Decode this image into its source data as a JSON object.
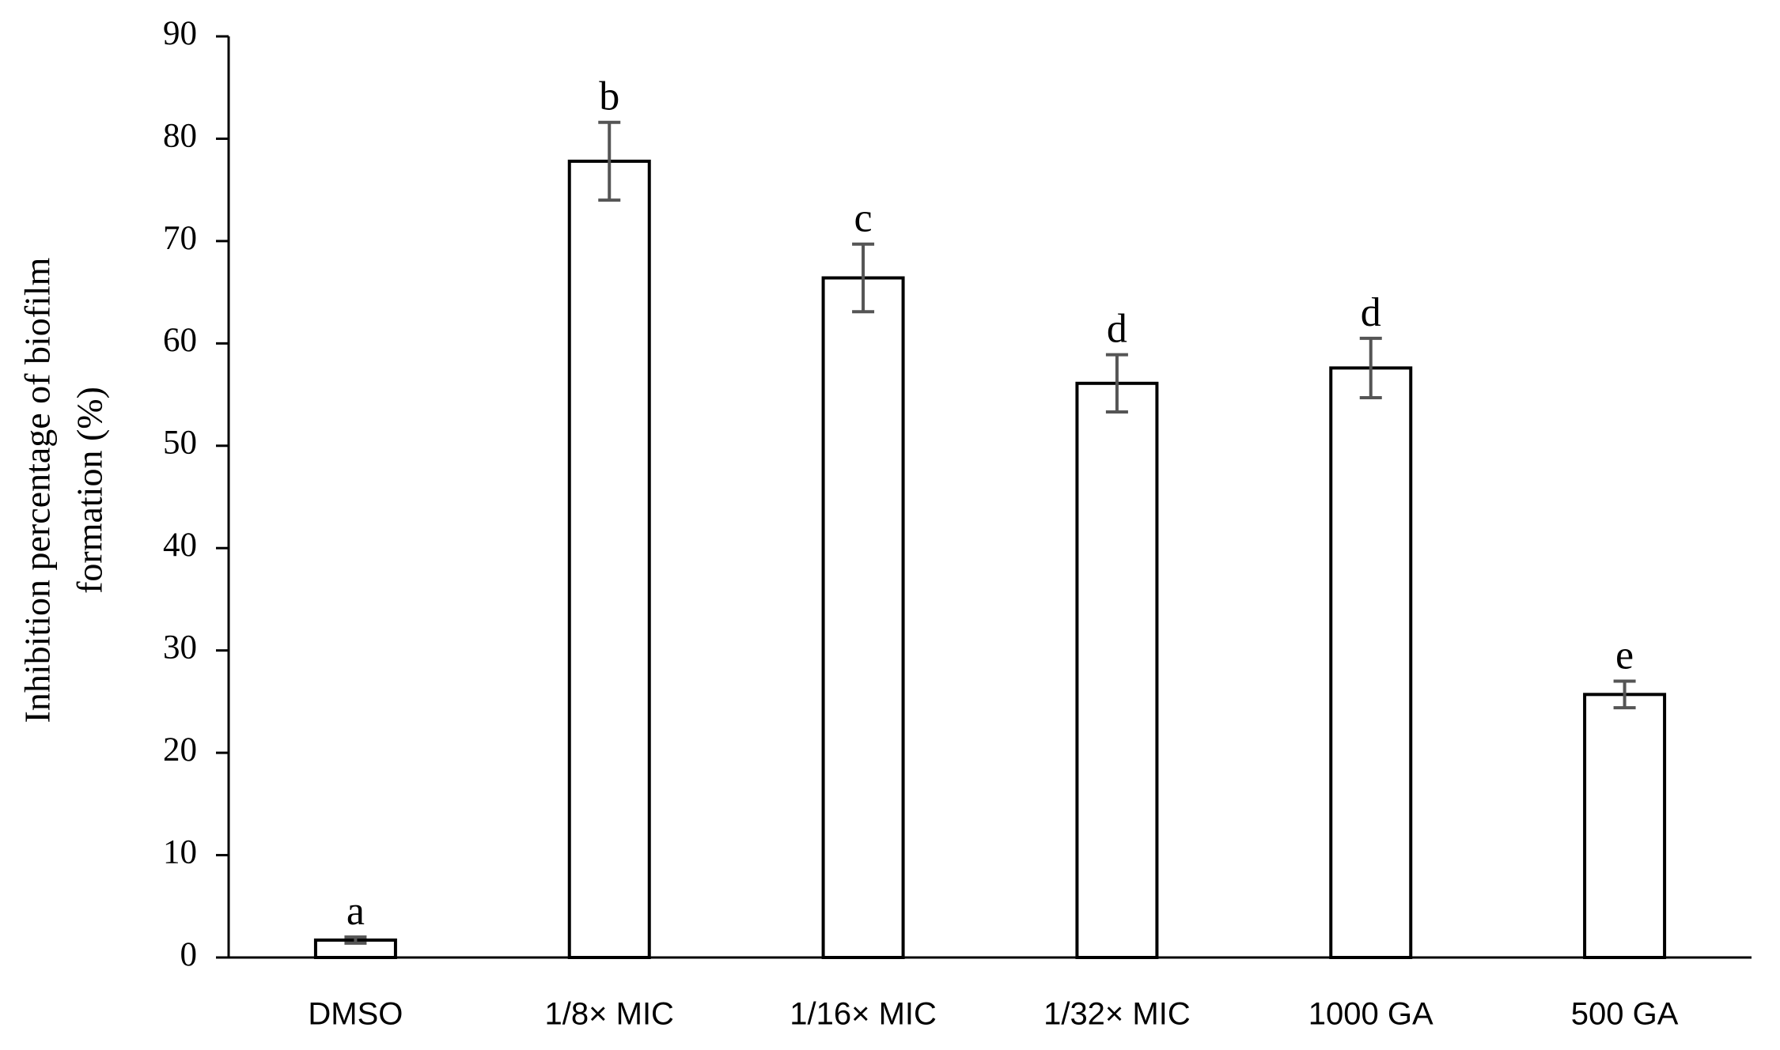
{
  "chart_data": {
    "type": "bar",
    "ylabel": [
      "Inhibition percentage of biofilm",
      "formation (%)"
    ],
    "categories": [
      "DMSO",
      "1/8× MIC",
      "1/16× MIC",
      "1/32× MIC",
      "1000 GA",
      "500 GA"
    ],
    "values": [
      1.7,
      77.8,
      66.4,
      56.1,
      57.6,
      25.7
    ],
    "errors": [
      0.3,
      3.8,
      3.3,
      2.8,
      2.9,
      1.3
    ],
    "annotations": [
      "a",
      "b",
      "c",
      "d",
      "d",
      "e"
    ],
    "color": "#ffffff",
    "edgecolor": "#000000",
    "errorcolor": "#555555",
    "ylim": [
      0,
      90
    ],
    "yticks": [
      0,
      10,
      20,
      30,
      40,
      50,
      60,
      70,
      80,
      90
    ],
    "grid": false
  }
}
